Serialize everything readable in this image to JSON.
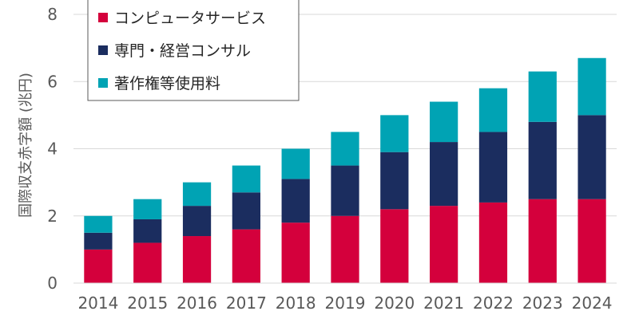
{
  "chart_data": {
    "type": "bar",
    "stacked": true,
    "title": "",
    "xlabel": "",
    "ylabel": "国際収支赤字額 (兆円)",
    "ylim": [
      0,
      8
    ],
    "yticks": [
      0,
      2,
      4,
      6,
      8
    ],
    "grid": true,
    "legend_position": "top-left",
    "categories": [
      "2014",
      "2015",
      "2016",
      "2017",
      "2018",
      "2019",
      "2020",
      "2021",
      "2022",
      "2023",
      "2024"
    ],
    "series": [
      {
        "name": "コンピュータサービス",
        "color": "#d4003c",
        "values": [
          1.0,
          1.2,
          1.4,
          1.6,
          1.8,
          2.0,
          2.2,
          2.3,
          2.4,
          2.5,
          2.5
        ]
      },
      {
        "name": "専門・経営コンサル",
        "color": "#1b2d5f",
        "values": [
          0.5,
          0.7,
          0.9,
          1.1,
          1.3,
          1.5,
          1.7,
          1.9,
          2.1,
          2.3,
          2.5
        ]
      },
      {
        "name": "著作権等使用料",
        "color": "#00a3b4",
        "values": [
          0.5,
          0.6,
          0.7,
          0.8,
          0.9,
          1.0,
          1.1,
          1.2,
          1.3,
          1.5,
          1.7
        ]
      }
    ]
  }
}
